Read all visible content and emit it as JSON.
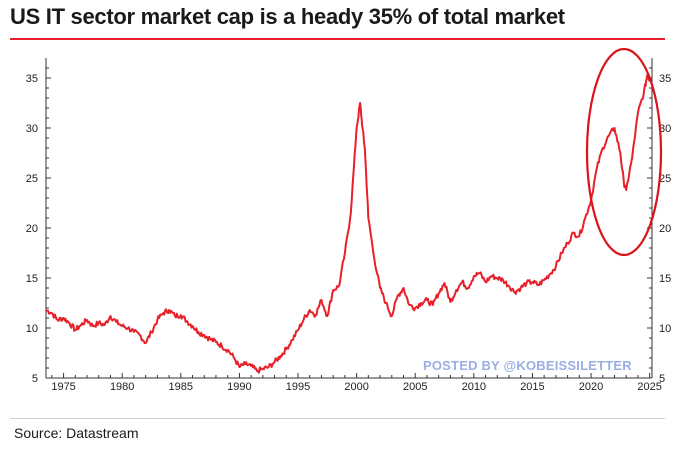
{
  "title": "US IT sector market cap is a heady 35% of total market",
  "source": "Source: Datastream",
  "watermark": "POSTED BY @KOBEISSILETTER",
  "colors": {
    "line": "#e8202a",
    "title_rule": "#e8202a",
    "highlight_circle": "#d9141c"
  },
  "chart_data": {
    "type": "line",
    "title": "US IT sector market cap is a heady 35% of total market",
    "xlabel": "",
    "ylabel": "",
    "xlim": [
      1973.5,
      2025.2
    ],
    "ylim": [
      5,
      37
    ],
    "x_ticks": [
      "1975",
      "1980",
      "1985",
      "1990",
      "1995",
      "2000",
      "2005",
      "2010",
      "2015",
      "2020",
      "2025"
    ],
    "y_ticks": [
      "5",
      "10",
      "15",
      "20",
      "25",
      "30",
      "35"
    ],
    "y_ticks_right": [
      "5",
      "10",
      "15",
      "20",
      "25",
      "30",
      "35"
    ],
    "grid": false,
    "series": [
      {
        "x": [
          1973.5,
          1974,
          1974.5,
          1975,
          1975.5,
          1976,
          1976.5,
          1977,
          1977.5,
          1978,
          1978.5,
          1979,
          1979.5,
          1980,
          1980.5,
          1981,
          1981.5,
          1982,
          1982.5,
          1983,
          1983.5,
          1984,
          1984.5,
          1985,
          1985.5,
          1986,
          1986.5,
          1987,
          1987.5,
          1988,
          1988.5,
          1989,
          1989.5,
          1990,
          1990.5,
          1991,
          1991.5,
          1992,
          1992.5,
          1993,
          1993.5,
          1994,
          1994.5,
          1995,
          1995.5,
          1996,
          1996.5,
          1997,
          1997.5,
          1998,
          1998.5,
          1999,
          1999.5,
          2000,
          2000.3,
          2000.5,
          2000.7,
          2001,
          2001.5,
          2002,
          2002.5,
          2003,
          2003.5,
          2004,
          2004.5,
          2005,
          2005.5,
          2006,
          2006.5,
          2007,
          2007.5,
          2008,
          2008.5,
          2009,
          2009.5,
          2010,
          2010.5,
          2011,
          2011.5,
          2012,
          2012.5,
          2013,
          2013.5,
          2014,
          2014.5,
          2015,
          2015.5,
          2016,
          2016.5,
          2017,
          2017.5,
          2018,
          2018.5,
          2019,
          2019.5,
          2020,
          2020.5,
          2021,
          2021.5,
          2022,
          2022.5,
          2022.8,
          2023,
          2023.5,
          2024,
          2024.5,
          2024.8,
          2025
        ],
        "values": [
          11.8,
          11.5,
          10.8,
          11,
          10.5,
          9.8,
          10.3,
          10.8,
          10.2,
          10.5,
          10.3,
          11.2,
          10.6,
          10.2,
          10.0,
          9.6,
          9.3,
          8.5,
          9.6,
          10.8,
          11.5,
          11.8,
          11.2,
          11.3,
          10.7,
          10.2,
          9.6,
          9.3,
          8.9,
          8.6,
          8.2,
          7.8,
          7.1,
          6.1,
          6.4,
          6.2,
          5.7,
          5.9,
          6.1,
          6.6,
          7.2,
          7.9,
          8.8,
          9.8,
          10.9,
          11.8,
          11.3,
          12.8,
          11.2,
          13.8,
          14.2,
          17.5,
          21.5,
          30.0,
          32.5,
          30.0,
          28.0,
          21.0,
          17.0,
          14.0,
          12.5,
          11.2,
          13.2,
          14.0,
          12.3,
          12.0,
          12.5,
          12.8,
          12.3,
          13.5,
          14.5,
          12.6,
          13.8,
          14.6,
          14.0,
          15.2,
          15.5,
          14.6,
          15.2,
          15.0,
          14.8,
          14.2,
          13.6,
          14.0,
          14.5,
          14.6,
          14.3,
          14.8,
          15.4,
          16.2,
          17.5,
          18.5,
          19.5,
          19.2,
          21.0,
          22.8,
          26.0,
          28.0,
          29.2,
          30.0,
          27.5,
          24.5,
          23.8,
          27.0,
          31.5,
          33.5,
          35.3,
          34.8
        ]
      }
    ],
    "annotations": [
      "circle highlighting 2020–2025"
    ]
  }
}
